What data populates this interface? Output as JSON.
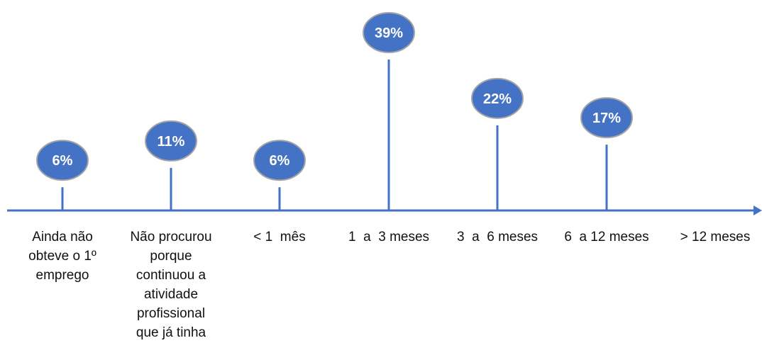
{
  "chart_data": {
    "type": "bar",
    "style": "lollipop",
    "categories": [
      "Ainda não obteve o 1º emprego",
      "Não procurou porque continuou a atividade profissional que já tinha",
      "< 1  mês",
      "1  a  3 meses",
      "3  a  6 meses",
      "6  a 12 meses",
      "> 12 meses"
    ],
    "category_lines": [
      [
        "Ainda não",
        "obteve o 1º",
        "emprego"
      ],
      [
        "Não procurou",
        "porque",
        "continuou a",
        "atividade",
        "profissional",
        "que já tinha"
      ],
      [
        "< 1  mês"
      ],
      [
        "1  a  3 meses"
      ],
      [
        "3  a  6 meses"
      ],
      [
        "6  a 12 meses"
      ],
      [
        "> 12 meses"
      ]
    ],
    "values": [
      6,
      11,
      6,
      39,
      22,
      17,
      null
    ],
    "data_labels": [
      "6%",
      "11%",
      "6%",
      "39%",
      "22%",
      "17%",
      ""
    ],
    "unit": "%",
    "ylim": [
      0,
      45
    ],
    "grid": false,
    "legend": "none",
    "title": "",
    "xlabel": "",
    "ylabel": ""
  },
  "colors": {
    "stem": "#4472c4",
    "bubble_fill": "#4472c4",
    "bubble_stroke": "#a5a5a5",
    "bubble_text": "#ffffff",
    "axis": "#4472c4",
    "label_text": "#111111"
  }
}
